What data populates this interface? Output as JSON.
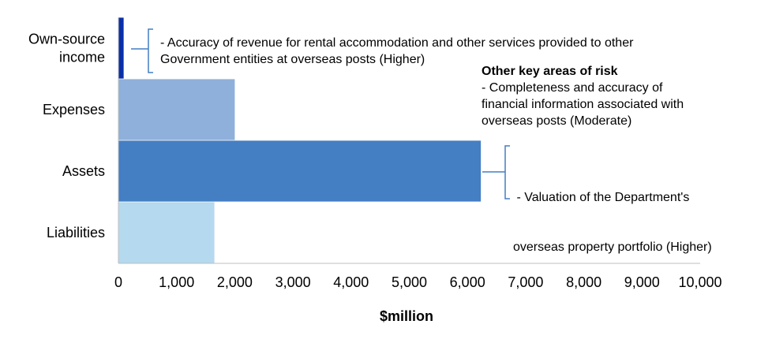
{
  "chart_data": {
    "type": "bar",
    "orientation": "horizontal",
    "categories": [
      "Own-source income",
      "Expenses",
      "Assets",
      "Liabilities"
    ],
    "category_lines": [
      [
        "Own-source",
        "income"
      ],
      [
        "Expenses"
      ],
      [
        "Assets"
      ],
      [
        "Liabilities"
      ]
    ],
    "values": [
      90,
      2000,
      6230,
      1650
    ],
    "colors": [
      "#0a2fa8",
      "#8eb0da",
      "#447ec3",
      "#b5d9ee"
    ],
    "xlim": [
      0,
      10000
    ],
    "xticks": [
      0,
      1000,
      2000,
      3000,
      4000,
      5000,
      6000,
      7000,
      8000,
      9000,
      10000
    ],
    "xtick_labels": [
      "0",
      "1,000",
      "2,000",
      "3,000",
      "4,000",
      "5,000",
      "6,000",
      "7,000",
      "8,000",
      "9,000",
      "10,000"
    ],
    "xlabel": "$million",
    "ylabel": "",
    "title": "",
    "grid": false,
    "annotations": [
      {
        "category": "Own-source income",
        "lines": [
          "- Accuracy of revenue for rental accommodation and other services provided to other",
          "Government entities at overseas posts (Higher)"
        ]
      },
      {
        "category": "Assets",
        "lines": [
          " - Valuation of the Department's",
          "overseas property portfolio (Higher)"
        ]
      }
    ],
    "other_risks": {
      "heading": "Other key areas of risk",
      "lines": [
        "- Completeness and accuracy of",
        "financial information associated with",
        "overseas posts (Moderate)"
      ]
    }
  },
  "colors": {
    "bracket": "#447ec3",
    "axis": "#bfbfbf"
  }
}
